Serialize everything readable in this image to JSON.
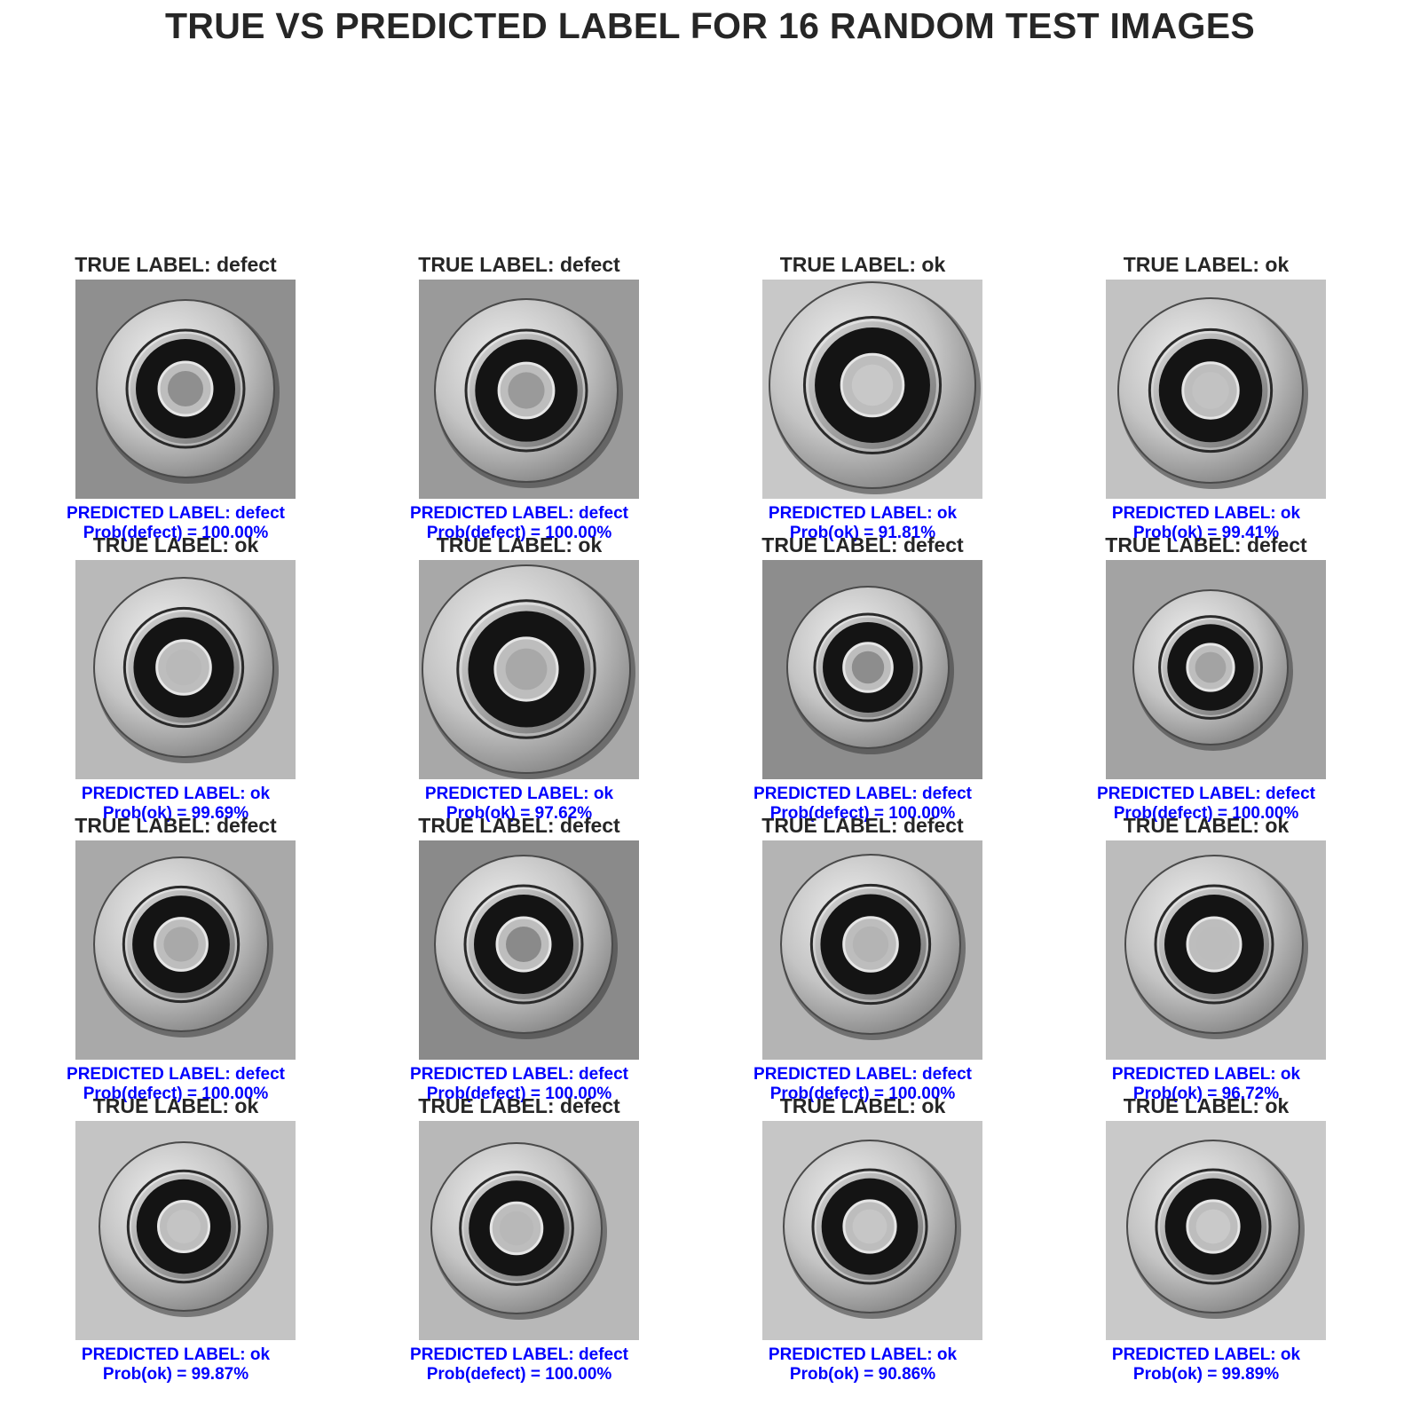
{
  "title": "TRUE VS PREDICTED LABEL FOR 16 RANDOM TEST IMAGES",
  "colors": {
    "title": "#262626",
    "true_label": "#262626",
    "prediction": "#0000ff"
  },
  "images": [
    {
      "true_label": "TRUE LABEL: defect",
      "predicted_label": "PREDICTED LABEL: defect",
      "probability": "Prob(defect) = 100.00%"
    },
    {
      "true_label": "TRUE LABEL: defect",
      "predicted_label": "PREDICTED LABEL: defect",
      "probability": "Prob(defect) = 100.00%"
    },
    {
      "true_label": "TRUE LABEL: ok",
      "predicted_label": "PREDICTED LABEL: ok",
      "probability": "Prob(ok) = 91.81%"
    },
    {
      "true_label": "TRUE LABEL: ok",
      "predicted_label": "PREDICTED LABEL: ok",
      "probability": "Prob(ok) = 99.41%"
    },
    {
      "true_label": "TRUE LABEL: ok",
      "predicted_label": "PREDICTED LABEL: ok",
      "probability": "Prob(ok) = 99.69%"
    },
    {
      "true_label": "TRUE LABEL: ok",
      "predicted_label": "PREDICTED LABEL: ok",
      "probability": "Prob(ok) = 97.62%"
    },
    {
      "true_label": "TRUE LABEL: defect",
      "predicted_label": "PREDICTED LABEL: defect",
      "probability": "Prob(defect) = 100.00%"
    },
    {
      "true_label": "TRUE LABEL: defect",
      "predicted_label": "PREDICTED LABEL: defect",
      "probability": "Prob(defect) = 100.00%"
    },
    {
      "true_label": "TRUE LABEL: defect",
      "predicted_label": "PREDICTED LABEL: defect",
      "probability": "Prob(defect) = 100.00%"
    },
    {
      "true_label": "TRUE LABEL: defect",
      "predicted_label": "PREDICTED LABEL: defect",
      "probability": "Prob(defect) = 100.00%"
    },
    {
      "true_label": "TRUE LABEL: defect",
      "predicted_label": "PREDICTED LABEL: defect",
      "probability": "Prob(defect) = 100.00%"
    },
    {
      "true_label": "TRUE LABEL: ok",
      "predicted_label": "PREDICTED LABEL: ok",
      "probability": "Prob(ok) = 96.72%"
    },
    {
      "true_label": "TRUE LABEL: ok",
      "predicted_label": "PREDICTED LABEL: ok",
      "probability": "Prob(ok) = 99.87%"
    },
    {
      "true_label": "TRUE LABEL: defect",
      "predicted_label": "PREDICTED LABEL: defect",
      "probability": "Prob(defect) = 100.00%"
    },
    {
      "true_label": "TRUE LABEL: ok",
      "predicted_label": "PREDICTED LABEL: ok",
      "probability": "Prob(ok) = 90.86%"
    },
    {
      "true_label": "TRUE LABEL: ok",
      "predicted_label": "PREDICTED LABEL: ok",
      "probability": "Prob(ok) = 99.89%"
    }
  ]
}
